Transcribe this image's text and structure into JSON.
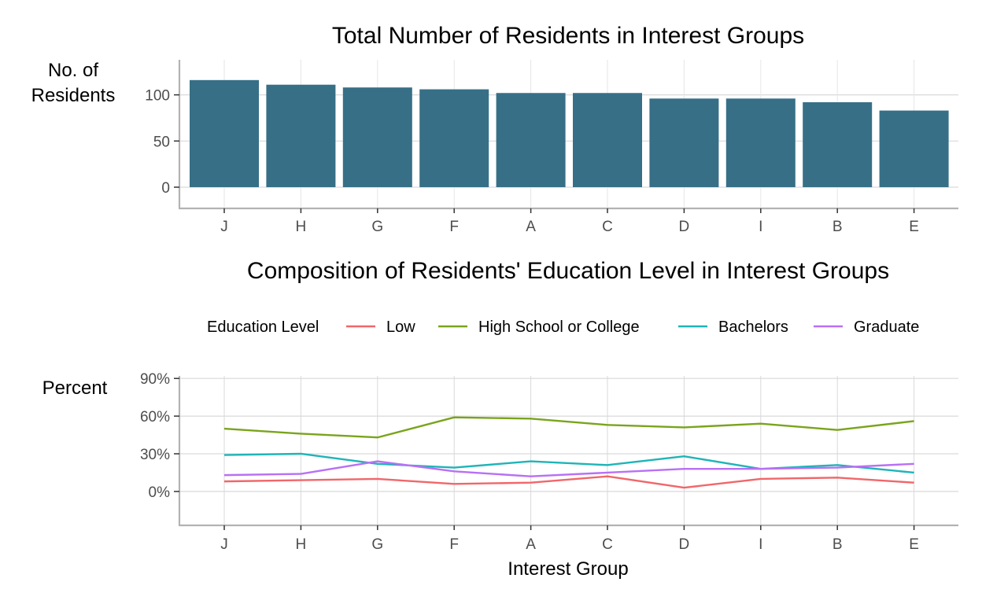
{
  "chart_data": [
    {
      "type": "bar",
      "title": "Total Number of Residents in Interest Groups",
      "ylabel_lines": [
        "No. of",
        "Residents"
      ],
      "xlabel": "",
      "categories": [
        "J",
        "H",
        "G",
        "F",
        "A",
        "C",
        "D",
        "I",
        "B",
        "E"
      ],
      "values": [
        116,
        111,
        108,
        106,
        102,
        102,
        96,
        96,
        92,
        83
      ],
      "yticks": [
        0,
        50,
        100
      ],
      "ytick_labels": [
        "0",
        "50",
        "100"
      ],
      "ylim": [
        -23,
        138
      ],
      "bar_color": "#376f87",
      "grid": true
    },
    {
      "type": "line",
      "title": "Composition of Residents' Education Level in Interest Groups",
      "ylabel": "Percent",
      "xlabel": "Interest Group",
      "categories": [
        "J",
        "H",
        "G",
        "F",
        "A",
        "C",
        "D",
        "I",
        "B",
        "E"
      ],
      "yticks": [
        0,
        30,
        60,
        90
      ],
      "ytick_labels": [
        "0%",
        "30%",
        "60%",
        "90%"
      ],
      "ylim": [
        -27,
        92
      ],
      "legend_title": "Education Level",
      "legend_position": "top",
      "grid": true,
      "series": [
        {
          "name": "Low",
          "color": "#f0676a",
          "values": [
            8,
            9,
            10,
            6,
            7,
            12,
            3,
            10,
            11,
            7
          ]
        },
        {
          "name": "High School or College",
          "color": "#7aa41c",
          "values": [
            50,
            46,
            43,
            59,
            58,
            53,
            51,
            54,
            49,
            56
          ]
        },
        {
          "name": "Bachelors",
          "color": "#1fb4b8",
          "values": [
            29,
            30,
            22,
            19,
            24,
            21,
            28,
            18,
            21,
            15
          ]
        },
        {
          "name": "Graduate",
          "color": "#b870f5",
          "values": [
            13,
            14,
            24,
            16,
            12,
            15,
            18,
            18,
            19,
            22
          ]
        }
      ]
    }
  ]
}
